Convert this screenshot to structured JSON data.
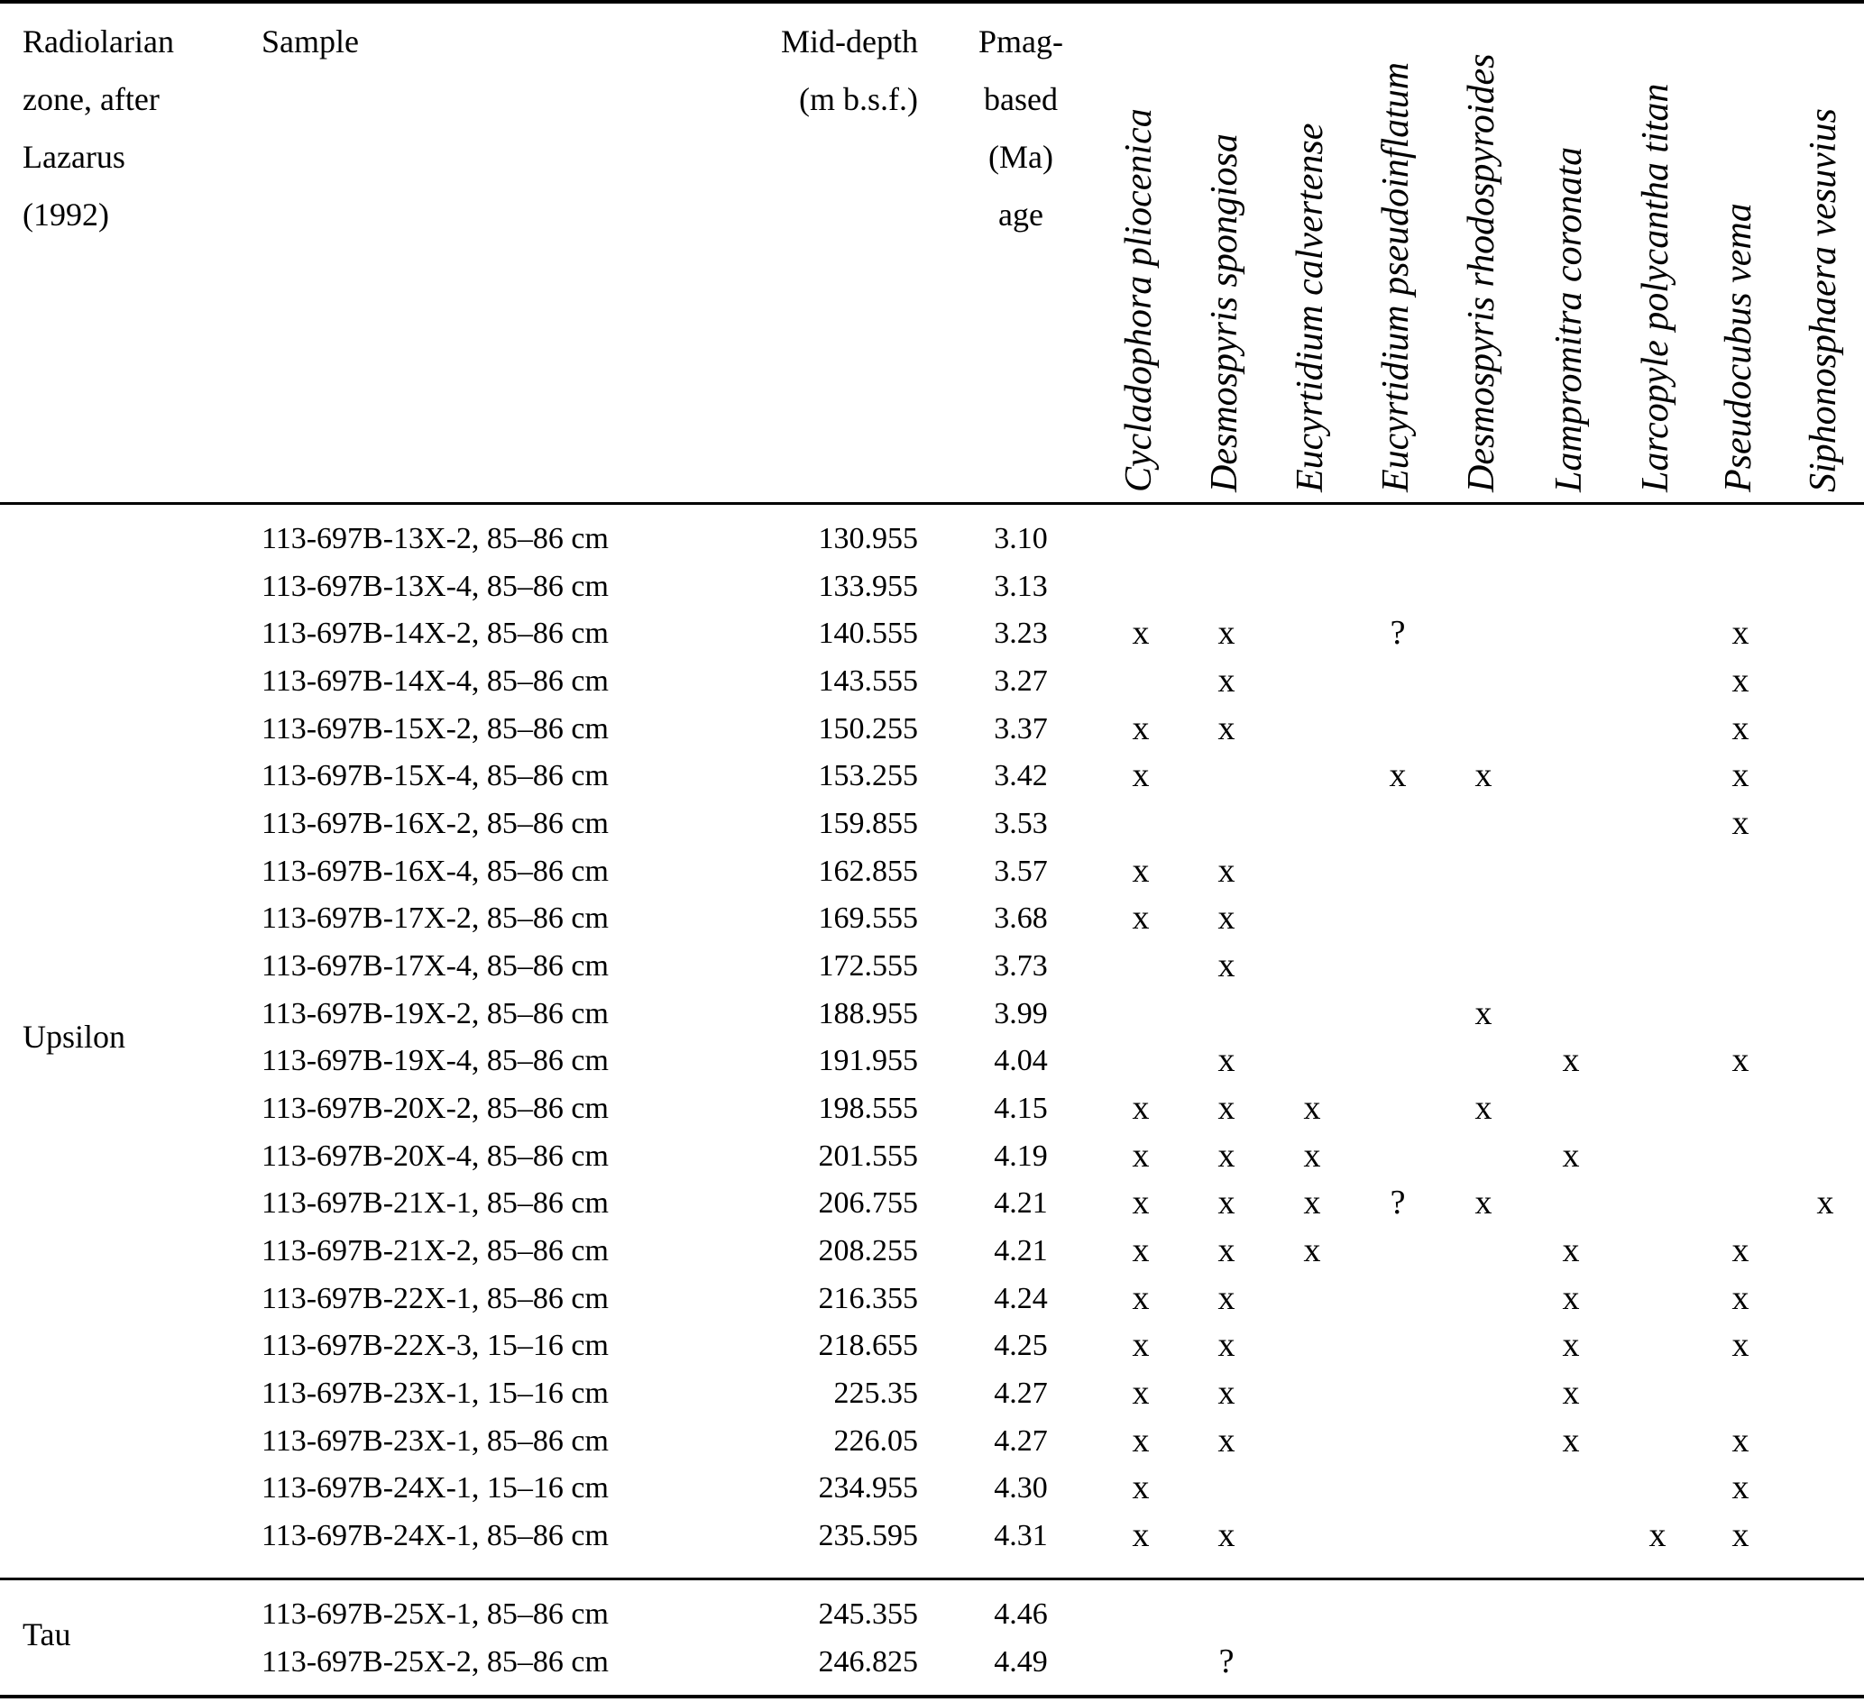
{
  "table": {
    "header": {
      "zone_label_lines": [
        "Radiolarian",
        "zone, after",
        "Lazarus",
        "(1992)"
      ],
      "sample_label": "Sample",
      "depth_label_lines": [
        "Mid-depth",
        "(m b.s.f.)"
      ],
      "age_label_lines": [
        "Pmag-",
        "based",
        "(Ma)",
        "age"
      ],
      "species": [
        "Cycladophora pliocenica",
        "Desmospyris spongiosa",
        "Eucyrtidium calvertense",
        "Eucyrtidium pseudoinflatum",
        "Desmospyris rhodospyroides",
        "Lampromitra coronata",
        "Larcopyle polycantha titan",
        "Pseudocubus vema",
        "Siphonosphaera vesuvius"
      ]
    },
    "zones": [
      {
        "name": "Upsilon",
        "rows": [
          {
            "sample": "113-697B-13X-2, 85–86 cm",
            "depth": "130.955",
            "age": "3.10",
            "marks": [
              "",
              "",
              "",
              "",
              "",
              "",
              "",
              "",
              ""
            ]
          },
          {
            "sample": "113-697B-13X-4, 85–86 cm",
            "depth": "133.955",
            "age": "3.13",
            "marks": [
              "",
              "",
              "",
              "",
              "",
              "",
              "",
              "",
              ""
            ]
          },
          {
            "sample": "113-697B-14X-2, 85–86 cm",
            "depth": "140.555",
            "age": "3.23",
            "marks": [
              "x",
              "x",
              "",
              "?",
              "",
              "",
              "",
              "x",
              ""
            ]
          },
          {
            "sample": "113-697B-14X-4, 85–86 cm",
            "depth": "143.555",
            "age": "3.27",
            "marks": [
              "",
              "x",
              "",
              "",
              "",
              "",
              "",
              "x",
              ""
            ]
          },
          {
            "sample": "113-697B-15X-2, 85–86 cm",
            "depth": "150.255",
            "age": "3.37",
            "marks": [
              "x",
              "x",
              "",
              "",
              "",
              "",
              "",
              "x",
              ""
            ]
          },
          {
            "sample": "113-697B-15X-4, 85–86 cm",
            "depth": "153.255",
            "age": "3.42",
            "marks": [
              "x",
              "",
              "",
              "x",
              "x",
              "",
              "",
              "x",
              ""
            ]
          },
          {
            "sample": "113-697B-16X-2, 85–86 cm",
            "depth": "159.855",
            "age": "3.53",
            "marks": [
              "",
              "",
              "",
              "",
              "",
              "",
              "",
              "x",
              ""
            ]
          },
          {
            "sample": "113-697B-16X-4, 85–86 cm",
            "depth": "162.855",
            "age": "3.57",
            "marks": [
              "x",
              "x",
              "",
              "",
              "",
              "",
              "",
              "",
              ""
            ]
          },
          {
            "sample": "113-697B-17X-2, 85–86 cm",
            "depth": "169.555",
            "age": "3.68",
            "marks": [
              "x",
              "x",
              "",
              "",
              "",
              "",
              "",
              "",
              ""
            ]
          },
          {
            "sample": "113-697B-17X-4, 85–86 cm",
            "depth": "172.555",
            "age": "3.73",
            "marks": [
              "",
              "x",
              "",
              "",
              "",
              "",
              "",
              "",
              ""
            ]
          },
          {
            "sample": "113-697B-19X-2, 85–86 cm",
            "depth": "188.955",
            "age": "3.99",
            "marks": [
              "",
              "",
              "",
              "",
              "x",
              "",
              "",
              "",
              ""
            ]
          },
          {
            "sample": "113-697B-19X-4, 85–86 cm",
            "depth": "191.955",
            "age": "4.04",
            "marks": [
              "",
              "x",
              "",
              "",
              "",
              "x",
              "",
              "x",
              ""
            ]
          },
          {
            "sample": "113-697B-20X-2, 85–86 cm",
            "depth": "198.555",
            "age": "4.15",
            "marks": [
              "x",
              "x",
              "x",
              "",
              "x",
              "",
              "",
              "",
              ""
            ]
          },
          {
            "sample": "113-697B-20X-4, 85–86 cm",
            "depth": "201.555",
            "age": "4.19",
            "marks": [
              "x",
              "x",
              "x",
              "",
              "",
              "x",
              "",
              "",
              ""
            ]
          },
          {
            "sample": "113-697B-21X-1, 85–86 cm",
            "depth": "206.755",
            "age": "4.21",
            "marks": [
              "x",
              "x",
              "x",
              "?",
              "x",
              "",
              "",
              "",
              "x"
            ]
          },
          {
            "sample": "113-697B-21X-2, 85–86 cm",
            "depth": "208.255",
            "age": "4.21",
            "marks": [
              "x",
              "x",
              "x",
              "",
              "",
              "x",
              "",
              "x",
              ""
            ]
          },
          {
            "sample": "113-697B-22X-1, 85–86 cm",
            "depth": "216.355",
            "age": "4.24",
            "marks": [
              "x",
              "x",
              "",
              "",
              "",
              "x",
              "",
              "x",
              ""
            ]
          },
          {
            "sample": "113-697B-22X-3, 15–16 cm",
            "depth": "218.655",
            "age": "4.25",
            "marks": [
              "x",
              "x",
              "",
              "",
              "",
              "x",
              "",
              "x",
              ""
            ]
          },
          {
            "sample": "113-697B-23X-1, 15–16 cm",
            "depth": "225.35",
            "age": "4.27",
            "marks": [
              "x",
              "x",
              "",
              "",
              "",
              "x",
              "",
              "",
              ""
            ]
          },
          {
            "sample": "113-697B-23X-1, 85–86 cm",
            "depth": "226.05",
            "age": "4.27",
            "marks": [
              "x",
              "x",
              "",
              "",
              "",
              "x",
              "",
              "x",
              ""
            ]
          },
          {
            "sample": "113-697B-24X-1, 15–16 cm",
            "depth": "234.955",
            "age": "4.30",
            "marks": [
              "x",
              "",
              "",
              "",
              "",
              "",
              "",
              "x",
              ""
            ]
          },
          {
            "sample": "113-697B-24X-1, 85–86 cm",
            "depth": "235.595",
            "age": "4.31",
            "marks": [
              "x",
              "x",
              "",
              "",
              "",
              "",
              "x",
              "x",
              ""
            ]
          }
        ]
      },
      {
        "name": "Tau",
        "rows": [
          {
            "sample": "113-697B-25X-1, 85–86 cm",
            "depth": "245.355",
            "age": "4.46",
            "marks": [
              "",
              "",
              "",
              "",
              "",
              "",
              "",
              "",
              ""
            ]
          },
          {
            "sample": "113-697B-25X-2, 85–86 cm",
            "depth": "246.825",
            "age": "4.49",
            "marks": [
              "",
              "?",
              "",
              "",
              "",
              "",
              "",
              "",
              ""
            ]
          }
        ]
      }
    ]
  }
}
